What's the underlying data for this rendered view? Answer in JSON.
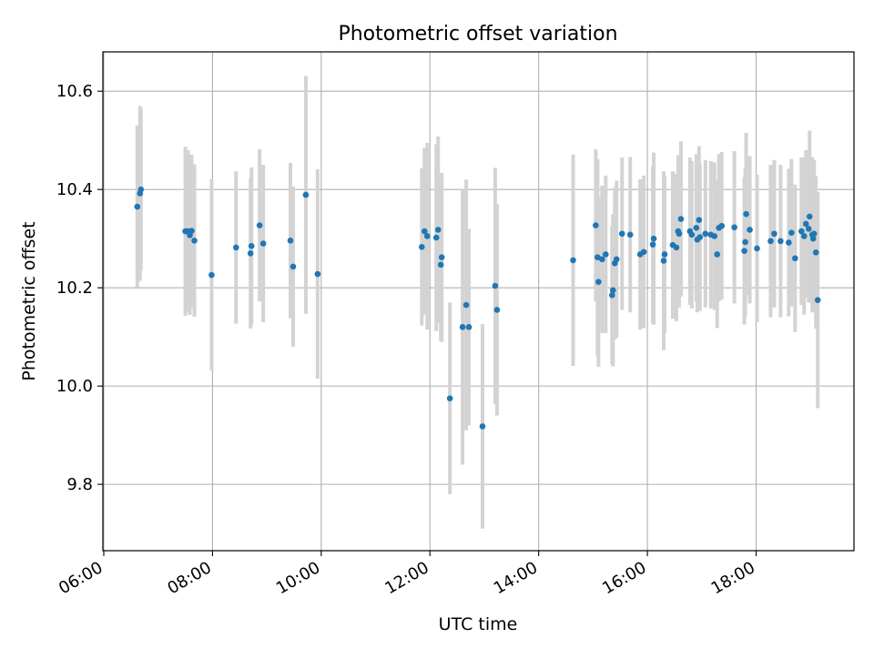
{
  "chart_data": {
    "type": "scatter",
    "title": "Photometric offset variation",
    "xlabel": "UTC time",
    "ylabel": "Photometric offset",
    "x_ticks": [
      "06:00",
      "08:00",
      "10:00",
      "12:00",
      "14:00",
      "16:00",
      "18:00"
    ],
    "y_ticks": [
      "9.8",
      "10.0",
      "10.2",
      "10.4",
      "10.6"
    ],
    "xlim": [
      "05:59",
      "19:48"
    ],
    "ylim": [
      9.665,
      10.68
    ],
    "grid": true,
    "colors": {
      "point": "#1f77b4",
      "errorbar": "#d3d3d3",
      "grid": "#b0b0b0"
    },
    "points": [
      {
        "x": "06:37",
        "y": 10.365,
        "err": 0.165
      },
      {
        "x": "06:40",
        "y": 10.392,
        "err": 0.178
      },
      {
        "x": "06:41",
        "y": 10.4,
        "err": 0.165
      },
      {
        "x": "07:30",
        "y": 10.315,
        "err": 0.172
      },
      {
        "x": "07:33",
        "y": 10.315,
        "err": 0.165
      },
      {
        "x": "07:35",
        "y": 10.307,
        "err": 0.162
      },
      {
        "x": "07:37",
        "y": 10.316,
        "err": 0.155
      },
      {
        "x": "07:40",
        "y": 10.296,
        "err": 0.155
      },
      {
        "x": "07:59",
        "y": 10.226,
        "err": 0.195
      },
      {
        "x": "08:26",
        "y": 10.282,
        "err": 0.155
      },
      {
        "x": "08:42",
        "y": 10.27,
        "err": 0.153
      },
      {
        "x": "08:43",
        "y": 10.285,
        "err": 0.16
      },
      {
        "x": "08:52",
        "y": 10.327,
        "err": 0.155
      },
      {
        "x": "08:56",
        "y": 10.29,
        "err": 0.16
      },
      {
        "x": "09:26",
        "y": 10.296,
        "err": 0.158
      },
      {
        "x": "09:29",
        "y": 10.243,
        "err": 0.163
      },
      {
        "x": "09:43",
        "y": 10.389,
        "err": 0.242
      },
      {
        "x": "09:56",
        "y": 10.228,
        "err": 0.213
      },
      {
        "x": "11:51",
        "y": 10.283,
        "err": 0.16
      },
      {
        "x": "11:54",
        "y": 10.315,
        "err": 0.17
      },
      {
        "x": "11:57",
        "y": 10.305,
        "err": 0.19
      },
      {
        "x": "12:07",
        "y": 10.302,
        "err": 0.19
      },
      {
        "x": "12:09",
        "y": 10.318,
        "err": 0.19
      },
      {
        "x": "12:12",
        "y": 10.247,
        "err": 0.155
      },
      {
        "x": "12:13",
        "y": 10.262,
        "err": 0.172
      },
      {
        "x": "12:22",
        "y": 9.975,
        "err": 0.195
      },
      {
        "x": "12:36",
        "y": 10.12,
        "err": 0.28
      },
      {
        "x": "12:40",
        "y": 10.165,
        "err": 0.255
      },
      {
        "x": "12:43",
        "y": 10.12,
        "err": 0.2
      },
      {
        "x": "12:58",
        "y": 9.918,
        "err": 0.208
      },
      {
        "x": "13:12",
        "y": 10.204,
        "err": 0.24
      },
      {
        "x": "13:14",
        "y": 10.155,
        "err": 0.215
      },
      {
        "x": "14:38",
        "y": 10.256,
        "err": 0.215
      },
      {
        "x": "15:03",
        "y": 10.327,
        "err": 0.155
      },
      {
        "x": "15:05",
        "y": 10.262,
        "err": 0.2
      },
      {
        "x": "15:06",
        "y": 10.212,
        "err": 0.173
      },
      {
        "x": "15:10",
        "y": 10.258,
        "err": 0.15
      },
      {
        "x": "15:14",
        "y": 10.268,
        "err": 0.16
      },
      {
        "x": "15:21",
        "y": 10.185,
        "err": 0.14
      },
      {
        "x": "15:22",
        "y": 10.195,
        "err": 0.155
      },
      {
        "x": "15:24",
        "y": 10.25,
        "err": 0.155
      },
      {
        "x": "15:26",
        "y": 10.258,
        "err": 0.16
      },
      {
        "x": "15:32",
        "y": 10.31,
        "err": 0.155
      },
      {
        "x": "15:41",
        "y": 10.308,
        "err": 0.158
      },
      {
        "x": "15:52",
        "y": 10.268,
        "err": 0.153
      },
      {
        "x": "15:56",
        "y": 10.273,
        "err": 0.155
      },
      {
        "x": "16:06",
        "y": 10.288,
        "err": 0.16
      },
      {
        "x": "16:07",
        "y": 10.3,
        "err": 0.175
      },
      {
        "x": "16:18",
        "y": 10.255,
        "err": 0.182
      },
      {
        "x": "16:19",
        "y": 10.268,
        "err": 0.16
      },
      {
        "x": "16:28",
        "y": 10.287,
        "err": 0.15
      },
      {
        "x": "16:32",
        "y": 10.282,
        "err": 0.15
      },
      {
        "x": "16:34",
        "y": 10.315,
        "err": 0.155
      },
      {
        "x": "16:35",
        "y": 10.31,
        "err": 0.15
      },
      {
        "x": "16:37",
        "y": 10.34,
        "err": 0.158
      },
      {
        "x": "16:47",
        "y": 10.315,
        "err": 0.15
      },
      {
        "x": "16:49",
        "y": 10.308,
        "err": 0.15
      },
      {
        "x": "16:54",
        "y": 10.322,
        "err": 0.15
      },
      {
        "x": "16:55",
        "y": 10.298,
        "err": 0.148
      },
      {
        "x": "16:57",
        "y": 10.338,
        "err": 0.15
      },
      {
        "x": "16:58",
        "y": 10.303,
        "err": 0.15
      },
      {
        "x": "17:04",
        "y": 10.31,
        "err": 0.15
      },
      {
        "x": "17:10",
        "y": 10.308,
        "err": 0.15
      },
      {
        "x": "17:14",
        "y": 10.305,
        "err": 0.15
      },
      {
        "x": "17:17",
        "y": 10.268,
        "err": 0.15
      },
      {
        "x": "17:19",
        "y": 10.322,
        "err": 0.15
      },
      {
        "x": "17:22",
        "y": 10.326,
        "err": 0.15
      },
      {
        "x": "17:36",
        "y": 10.323,
        "err": 0.155
      },
      {
        "x": "17:47",
        "y": 10.275,
        "err": 0.15
      },
      {
        "x": "17:48",
        "y": 10.293,
        "err": 0.15
      },
      {
        "x": "17:49",
        "y": 10.35,
        "err": 0.165
      },
      {
        "x": "17:53",
        "y": 10.318,
        "err": 0.15
      },
      {
        "x": "18:01",
        "y": 10.28,
        "err": 0.15
      },
      {
        "x": "18:16",
        "y": 10.295,
        "err": 0.155
      },
      {
        "x": "18:20",
        "y": 10.31,
        "err": 0.15
      },
      {
        "x": "18:27",
        "y": 10.295,
        "err": 0.155
      },
      {
        "x": "18:36",
        "y": 10.292,
        "err": 0.15
      },
      {
        "x": "18:39",
        "y": 10.312,
        "err": 0.15
      },
      {
        "x": "18:43",
        "y": 10.26,
        "err": 0.15
      },
      {
        "x": "18:50",
        "y": 10.315,
        "err": 0.15
      },
      {
        "x": "18:53",
        "y": 10.305,
        "err": 0.16
      },
      {
        "x": "18:55",
        "y": 10.33,
        "err": 0.15
      },
      {
        "x": "18:58",
        "y": 10.32,
        "err": 0.15
      },
      {
        "x": "18:59",
        "y": 10.345,
        "err": 0.175
      },
      {
        "x": "19:02",
        "y": 10.308,
        "err": 0.158
      },
      {
        "x": "19:03",
        "y": 10.3,
        "err": 0.15
      },
      {
        "x": "19:04",
        "y": 10.31,
        "err": 0.15
      },
      {
        "x": "19:06",
        "y": 10.272,
        "err": 0.155
      },
      {
        "x": "19:08",
        "y": 10.175,
        "err": 0.22
      }
    ]
  }
}
